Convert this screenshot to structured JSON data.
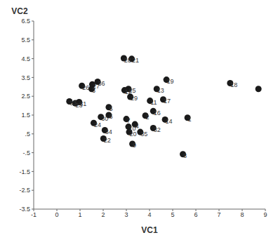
{
  "chart_data": {
    "type": "scatter",
    "x_label": "VC1",
    "y_label": "VC2",
    "color": "#1a1a1a",
    "marker": "circle",
    "grid": false,
    "labels": [
      "28",
      "21",
      "19",
      "18",
      null,
      "36",
      "27",
      "26",
      "3",
      "13",
      "25",
      "12",
      "29",
      "11",
      "17",
      "33",
      "31",
      "23",
      "5",
      "16",
      "7",
      "2",
      "6",
      "30",
      "14",
      "1",
      "24",
      "4",
      "10",
      "32",
      "20",
      "35",
      "34",
      "22",
      "9",
      "8"
    ],
    "x": [
      2.89,
      3.23,
      4.73,
      7.48,
      8.7,
      1.76,
      1.53,
      1.08,
      1.5,
      4.31,
      3.09,
      2.92,
      3.17,
      4.02,
      4.59,
      0.54,
      0.96,
      0.79,
      2.24,
      4.16,
      3.0,
      3.82,
      2.24,
      1.9,
      4.67,
      5.64,
      1.59,
      3.37,
      3.09,
      4.16,
      3.12,
      3.6,
      2.07,
      2.01,
      3.26,
      5.44
    ],
    "values": [
      4.52,
      4.49,
      3.38,
      3.2,
      2.89,
      3.27,
      3.13,
      3.06,
      2.89,
      2.89,
      2.89,
      2.82,
      2.47,
      2.26,
      2.33,
      2.23,
      2.19,
      2.13,
      1.92,
      1.71,
      1.29,
      1.47,
      1.5,
      1.4,
      1.26,
      1.36,
      1.08,
      1.01,
      0.88,
      0.81,
      0.6,
      0.6,
      0.7,
      0.25,
      -0.03,
      -0.58
    ],
    "xlim": [
      -1,
      9
    ],
    "xticks": [
      -1,
      0,
      1,
      2,
      3,
      4,
      5,
      6,
      7,
      8,
      9
    ],
    "ylim": [
      -3.5,
      6.5
    ],
    "yticks": [
      -3.5,
      -2.5,
      -1.5,
      {
        "value": -0.5,
        "label": "-.5"
      },
      {
        "value": 0.5,
        "label": ".5"
      },
      1.5,
      2.5,
      3.5,
      4.5,
      5.5,
      6.5
    ]
  }
}
